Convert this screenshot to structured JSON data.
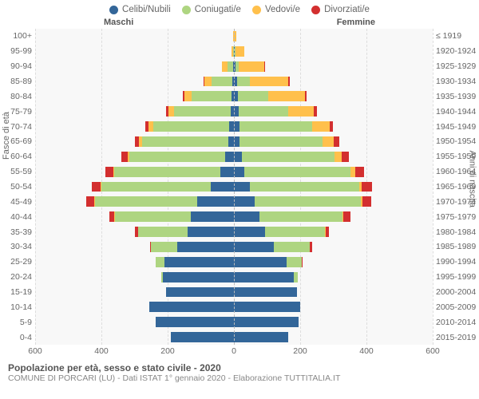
{
  "legend": [
    {
      "label": "Celibi/Nubili",
      "color": "#336699"
    },
    {
      "label": "Coniugati/e",
      "color": "#aed581"
    },
    {
      "label": "Vedovi/e",
      "color": "#ffc04c"
    },
    {
      "label": "Divorziati/e",
      "color": "#d32f2f"
    }
  ],
  "headers": {
    "male": "Maschi",
    "female": "Femmine"
  },
  "ytitle_left": "Fasce di età",
  "ytitle_right": "Anni di nascita",
  "footer": {
    "title": "Popolazione per età, sesso e stato civile - 2020",
    "subtitle": "COMUNE DI PORCARI (LU) - Dati ISTAT 1° gennaio 2020 - Elaborazione TUTTITALIA.IT"
  },
  "chart": {
    "type": "population-pyramid",
    "x_max": 600,
    "x_ticks": [
      600,
      400,
      200,
      0,
      200,
      400,
      600
    ],
    "background_color": "#f8f8f8",
    "grid_color": "#dddddd",
    "segment_order": [
      "celibi",
      "coniugati",
      "vedovi",
      "divorziati"
    ],
    "colors": {
      "celibi": "#336699",
      "coniugati": "#aed581",
      "vedovi": "#ffc04c",
      "divorziati": "#d32f2f"
    },
    "rows": [
      {
        "age": "100+",
        "birth": "≤ 1919",
        "m": {
          "celibi": 0,
          "coniugati": 0,
          "vedovi": 2,
          "divorziati": 0
        },
        "f": {
          "celibi": 0,
          "coniugati": 0,
          "vedovi": 7,
          "divorziati": 0
        }
      },
      {
        "age": "95-99",
        "birth": "1920-1924",
        "m": {
          "celibi": 0,
          "coniugati": 3,
          "vedovi": 5,
          "divorziati": 0
        },
        "f": {
          "celibi": 2,
          "coniugati": 2,
          "vedovi": 28,
          "divorziati": 0
        }
      },
      {
        "age": "90-94",
        "birth": "1925-1929",
        "m": {
          "celibi": 2,
          "coniugati": 18,
          "vedovi": 17,
          "divorziati": 0
        },
        "f": {
          "celibi": 6,
          "coniugati": 8,
          "vedovi": 78,
          "divorziati": 2
        }
      },
      {
        "age": "85-89",
        "birth": "1930-1934",
        "m": {
          "celibi": 5,
          "coniugati": 62,
          "vedovi": 22,
          "divorziati": 2
        },
        "f": {
          "celibi": 9,
          "coniugati": 38,
          "vedovi": 118,
          "divorziati": 4
        }
      },
      {
        "age": "80-84",
        "birth": "1935-1939",
        "m": {
          "celibi": 8,
          "coniugati": 120,
          "vedovi": 22,
          "divorziati": 4
        },
        "f": {
          "celibi": 12,
          "coniugati": 92,
          "vedovi": 110,
          "divorziati": 6
        }
      },
      {
        "age": "75-79",
        "birth": "1940-1944",
        "m": {
          "celibi": 10,
          "coniugati": 170,
          "vedovi": 18,
          "divorziati": 6
        },
        "f": {
          "celibi": 14,
          "coniugati": 150,
          "vedovi": 78,
          "divorziati": 8
        }
      },
      {
        "age": "70-74",
        "birth": "1945-1949",
        "m": {
          "celibi": 14,
          "coniugati": 230,
          "vedovi": 14,
          "divorziati": 10
        },
        "f": {
          "celibi": 16,
          "coniugati": 220,
          "vedovi": 52,
          "divorziati": 12
        }
      },
      {
        "age": "65-69",
        "birth": "1950-1954",
        "m": {
          "celibi": 18,
          "coniugati": 260,
          "vedovi": 8,
          "divorziati": 14
        },
        "f": {
          "celibi": 18,
          "coniugati": 250,
          "vedovi": 34,
          "divorziati": 16
        }
      },
      {
        "age": "60-64",
        "birth": "1955-1959",
        "m": {
          "celibi": 26,
          "coniugati": 290,
          "vedovi": 5,
          "divorziati": 18
        },
        "f": {
          "celibi": 24,
          "coniugati": 280,
          "vedovi": 22,
          "divorziati": 22
        }
      },
      {
        "age": "55-59",
        "birth": "1960-1964",
        "m": {
          "celibi": 42,
          "coniugati": 320,
          "vedovi": 3,
          "divorziati": 22
        },
        "f": {
          "celibi": 32,
          "coniugati": 320,
          "vedovi": 14,
          "divorziati": 28
        }
      },
      {
        "age": "50-54",
        "birth": "1965-1969",
        "m": {
          "celibi": 70,
          "coniugati": 330,
          "vedovi": 2,
          "divorziati": 26
        },
        "f": {
          "celibi": 48,
          "coniugati": 330,
          "vedovi": 8,
          "divorziati": 30
        }
      },
      {
        "age": "45-49",
        "birth": "1970-1974",
        "m": {
          "celibi": 110,
          "coniugati": 310,
          "vedovi": 2,
          "divorziati": 24
        },
        "f": {
          "celibi": 62,
          "coniugati": 320,
          "vedovi": 5,
          "divorziati": 28
        }
      },
      {
        "age": "40-44",
        "birth": "1975-1979",
        "m": {
          "celibi": 130,
          "coniugati": 230,
          "vedovi": 1,
          "divorziati": 16
        },
        "f": {
          "celibi": 78,
          "coniugati": 250,
          "vedovi": 3,
          "divorziati": 20
        }
      },
      {
        "age": "35-39",
        "birth": "1980-1984",
        "m": {
          "celibi": 140,
          "coniugati": 150,
          "vedovi": 0,
          "divorziati": 8
        },
        "f": {
          "celibi": 95,
          "coniugati": 180,
          "vedovi": 1,
          "divorziati": 10
        }
      },
      {
        "age": "30-34",
        "birth": "1985-1989",
        "m": {
          "celibi": 170,
          "coniugati": 80,
          "vedovi": 0,
          "divorziati": 3
        },
        "f": {
          "celibi": 120,
          "coniugati": 110,
          "vedovi": 0,
          "divorziati": 5
        }
      },
      {
        "age": "25-29",
        "birth": "1990-1994",
        "m": {
          "celibi": 210,
          "coniugati": 25,
          "vedovi": 0,
          "divorziati": 1
        },
        "f": {
          "celibi": 160,
          "coniugati": 45,
          "vedovi": 0,
          "divorziati": 2
        }
      },
      {
        "age": "20-24",
        "birth": "1995-1999",
        "m": {
          "celibi": 215,
          "coniugati": 5,
          "vedovi": 0,
          "divorziati": 0
        },
        "f": {
          "celibi": 180,
          "coniugati": 12,
          "vedovi": 0,
          "divorziati": 0
        }
      },
      {
        "age": "15-19",
        "birth": "2000-2004",
        "m": {
          "celibi": 205,
          "coniugati": 0,
          "vedovi": 0,
          "divorziati": 0
        },
        "f": {
          "celibi": 190,
          "coniugati": 0,
          "vedovi": 0,
          "divorziati": 0
        }
      },
      {
        "age": "10-14",
        "birth": "2005-2009",
        "m": {
          "celibi": 255,
          "coniugati": 0,
          "vedovi": 0,
          "divorziati": 0
        },
        "f": {
          "celibi": 200,
          "coniugati": 0,
          "vedovi": 0,
          "divorziati": 0
        }
      },
      {
        "age": "5-9",
        "birth": "2010-2014",
        "m": {
          "celibi": 235,
          "coniugati": 0,
          "vedovi": 0,
          "divorziati": 0
        },
        "f": {
          "celibi": 195,
          "coniugati": 0,
          "vedovi": 0,
          "divorziati": 0
        }
      },
      {
        "age": "0-4",
        "birth": "2015-2019",
        "m": {
          "celibi": 190,
          "coniugati": 0,
          "vedovi": 0,
          "divorziati": 0
        },
        "f": {
          "celibi": 165,
          "coniugati": 0,
          "vedovi": 0,
          "divorziati": 0
        }
      }
    ]
  }
}
